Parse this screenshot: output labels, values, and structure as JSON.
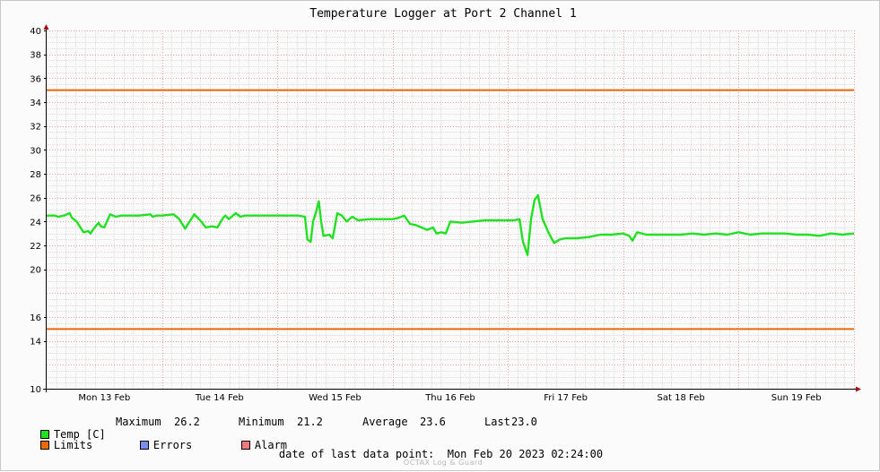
{
  "chart_data": {
    "type": "line",
    "title": "Temperature Logger at Port 2 Channel 1",
    "ylim": [
      10,
      40
    ],
    "yticks": [
      10,
      14,
      16,
      20,
      22,
      24,
      26,
      28,
      30,
      32,
      34,
      36,
      38,
      40
    ],
    "xlim": [
      0,
      7
    ],
    "categories": [
      "Mon 13 Feb",
      "Tue 14 Feb",
      "Wed 15 Feb",
      "Thu 16 Feb",
      "Fri 17 Feb",
      "Sat 18 Feb",
      "Sun 19 Feb"
    ],
    "grid": true,
    "limits": {
      "name": "Limits",
      "values": [
        35,
        15
      ],
      "color": "#ea6a0a"
    },
    "series": [
      {
        "name": "Temp [C]",
        "color": "#22e022",
        "x": [
          0,
          0.07,
          0.1,
          0.15,
          0.2,
          0.22,
          0.26,
          0.32,
          0.36,
          0.38,
          0.4,
          0.45,
          0.47,
          0.5,
          0.55,
          0.6,
          0.65,
          0.7,
          0.8,
          0.9,
          0.92,
          0.95,
          1,
          1.1,
          1.15,
          1.2,
          1.28,
          1.3,
          1.34,
          1.38,
          1.43,
          1.48,
          1.53,
          1.55,
          1.58,
          1.64,
          1.68,
          1.72,
          1.75,
          1.8,
          1.9,
          2.0,
          2.1,
          2.18,
          2.24,
          2.26,
          2.29,
          2.31,
          2.33,
          2.36,
          2.38,
          2.4,
          2.45,
          2.48,
          2.52,
          2.56,
          2.6,
          2.65,
          2.7,
          2.8,
          2.9,
          3.0,
          3.05,
          3.1,
          3.15,
          3.2,
          3.25,
          3.3,
          3.35,
          3.38,
          3.42,
          3.46,
          3.5,
          3.6,
          3.7,
          3.8,
          3.9,
          4.0,
          4.05,
          4.1,
          4.13,
          4.17,
          4.2,
          4.23,
          4.26,
          4.3,
          4.35,
          4.4,
          4.45,
          4.5,
          4.6,
          4.7,
          4.8,
          4.9,
          5.0,
          5.05,
          5.08,
          5.12,
          5.2,
          5.3,
          5.4,
          5.5,
          5.6,
          5.7,
          5.8,
          5.9,
          6.0,
          6.1,
          6.2,
          6.3,
          6.4,
          6.5,
          6.6,
          6.7,
          6.8,
          6.9,
          7.0
        ],
        "values": [
          24.5,
          24.5,
          24.4,
          24.5,
          24.7,
          24.3,
          24.0,
          23.1,
          23.2,
          23.0,
          23.3,
          23.9,
          23.6,
          23.5,
          24.6,
          24.4,
          24.5,
          24.5,
          24.5,
          24.6,
          24.4,
          24.5,
          24.5,
          24.6,
          24.2,
          23.4,
          24.6,
          24.4,
          24.0,
          23.5,
          23.6,
          23.5,
          24.3,
          24.5,
          24.2,
          24.7,
          24.4,
          24.5,
          24.5,
          24.5,
          24.5,
          24.5,
          24.5,
          24.5,
          24.4,
          22.5,
          22.3,
          24.0,
          24.6,
          25.7,
          24.0,
          22.8,
          22.9,
          22.6,
          24.7,
          24.5,
          24.0,
          24.4,
          24.1,
          24.2,
          24.2,
          24.2,
          24.3,
          24.5,
          23.8,
          23.7,
          23.5,
          23.3,
          23.5,
          23.0,
          23.1,
          23.0,
          24.0,
          23.9,
          24.0,
          24.1,
          24.1,
          24.1,
          24.1,
          24.2,
          22.3,
          21.2,
          24.2,
          25.8,
          26.2,
          24.2,
          23.1,
          22.2,
          22.5,
          22.6,
          22.6,
          22.7,
          22.9,
          22.9,
          23.0,
          22.8,
          22.4,
          23.1,
          22.9,
          22.9,
          22.9,
          22.9,
          23.0,
          22.9,
          23.0,
          22.9,
          23.1,
          22.9,
          23.0,
          23.0,
          23.0,
          22.9,
          22.9,
          22.8,
          23.0,
          22.9,
          23.0
        ]
      }
    ],
    "legend": {
      "temp": "Temp [C]",
      "limits": "Limits",
      "errors": "Errors",
      "alarm": "Alarm",
      "colors": {
        "temp": "#22e022",
        "limits": "#ea6a0a",
        "errors": "#7b8df0",
        "alarm": "#f07a80"
      }
    },
    "stats": {
      "max_label": "Maximum",
      "max": "26.2",
      "min_label": "Minimum",
      "min": "21.2",
      "avg_label": "Average",
      "avg": "23.6",
      "last_label": "Last",
      "last": "23.0"
    },
    "footer": {
      "date_label": "date of last data point:",
      "date_value": "Mon Feb 20 2023 02:24:00",
      "brand": "OCTAX Log & Guard"
    }
  }
}
